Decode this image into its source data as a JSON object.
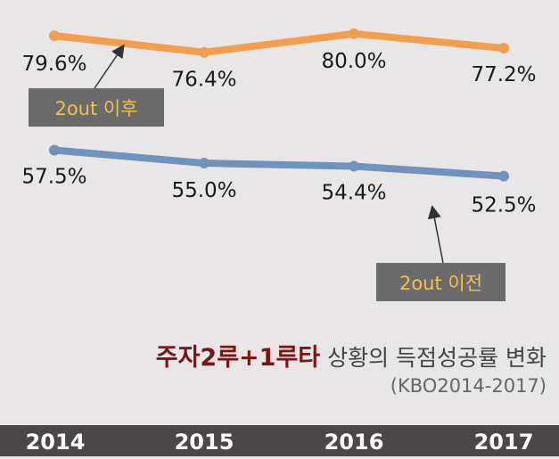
{
  "chart_data": {
    "type": "line",
    "categories": [
      "2014",
      "2015",
      "2016",
      "2017"
    ],
    "series": [
      {
        "name": "2out 이후",
        "values": [
          79.6,
          76.4,
          80.0,
          77.2
        ],
        "labels": [
          "79.6%",
          "76.4%",
          "80.0%",
          "77.2%"
        ],
        "color": "#f29e4c"
      },
      {
        "name": "2out 이전",
        "values": [
          57.5,
          55.0,
          54.4,
          52.5
        ],
        "labels": [
          "57.5%",
          "55.0%",
          "54.4%",
          "52.5%"
        ],
        "color": "#6f93bd"
      }
    ],
    "title_emphasis": "주자2루+1루타",
    "title_rest": "상황의 득점성공률 변화",
    "subtitle": "(KBO2014-2017)",
    "grid": false,
    "legend": "callouts"
  },
  "colors": {
    "background": "#e8e6e6",
    "axis_bar": "#4b4748",
    "callout_bg": "#6b6b6b",
    "callout_text": "#f2c14e",
    "title_emphasis": "#7a1518"
  }
}
